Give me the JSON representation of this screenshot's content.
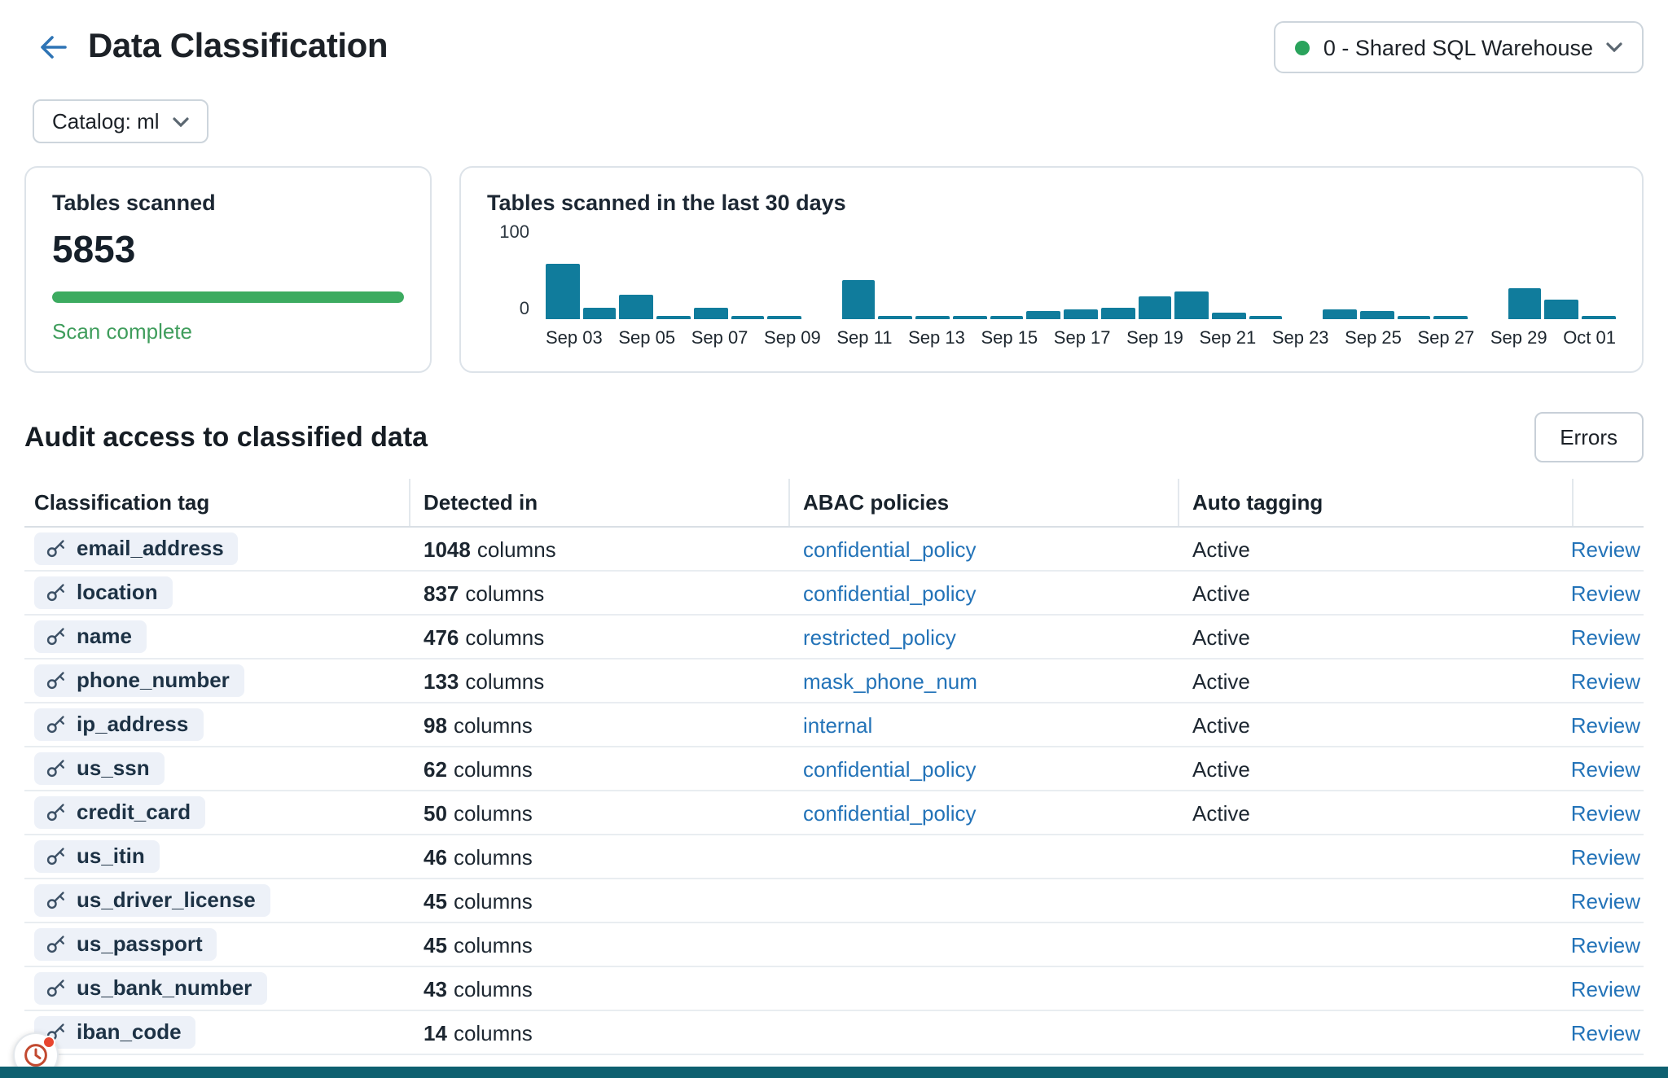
{
  "header": {
    "back_icon": "arrow-left",
    "title": "Data Classification",
    "warehouse_selector": {
      "label": "0 - Shared SQL Warehouse",
      "status_color": "#2aa35c"
    }
  },
  "filters": {
    "catalog_button": "Catalog: ml"
  },
  "cards": {
    "summary": {
      "title": "Tables scanned",
      "count": "5853",
      "status": "Scan complete",
      "progress_pct": 100,
      "progress_color": "#3cab60",
      "status_color": "#3f9d5c"
    },
    "chart": {
      "title": "Tables scanned in the last 30 days"
    }
  },
  "chart_data": {
    "type": "bar",
    "title": "Tables scanned in the last 30 days",
    "x": [
      "Sep 03",
      "Sep 04",
      "Sep 05",
      "Sep 06",
      "Sep 07",
      "Sep 08",
      "Sep 09",
      "Sep 10",
      "Sep 11",
      "Sep 12",
      "Sep 13",
      "Sep 14",
      "Sep 15",
      "Sep 16",
      "Sep 17",
      "Sep 18",
      "Sep 19",
      "Sep 20",
      "Sep 21",
      "Sep 22",
      "Sep 23",
      "Sep 24",
      "Sep 25",
      "Sep 26",
      "Sep 27",
      "Sep 28",
      "Sep 29",
      "Sep 30",
      "Oct 01"
    ],
    "values": [
      58,
      12,
      26,
      2,
      12,
      3,
      2,
      0,
      42,
      3,
      2,
      1,
      4,
      8,
      10,
      12,
      25,
      30,
      7,
      2,
      0,
      10,
      8,
      2,
      3,
      0,
      32,
      20,
      2
    ],
    "tick_every": 2,
    "ylim": [
      0,
      100
    ],
    "y_axis_labels": {
      "top": "100",
      "bottom": "0"
    },
    "bar_color": "#107c9c",
    "grid": false,
    "legend": false
  },
  "audit": {
    "title": "Audit access to classified data",
    "errors_button": "Errors",
    "table": {
      "columns": [
        "Classification tag",
        "Detected in",
        "ABAC policies",
        "Auto tagging"
      ],
      "review_label": "Review",
      "rows": [
        {
          "tag": "email_address",
          "count": "1048",
          "unit": "columns",
          "policy": "confidential_policy",
          "auto_tagging": "Active"
        },
        {
          "tag": "location",
          "count": "837",
          "unit": "columns",
          "policy": "confidential_policy",
          "auto_tagging": "Active"
        },
        {
          "tag": "name",
          "count": "476",
          "unit": "columns",
          "policy": "restricted_policy",
          "auto_tagging": "Active"
        },
        {
          "tag": "phone_number",
          "count": "133",
          "unit": "columns",
          "policy": "mask_phone_num",
          "auto_tagging": "Active"
        },
        {
          "tag": "ip_address",
          "count": "98",
          "unit": "columns",
          "policy": "internal",
          "auto_tagging": "Active"
        },
        {
          "tag": "us_ssn",
          "count": "62",
          "unit": "columns",
          "policy": "confidential_policy",
          "auto_tagging": "Active"
        },
        {
          "tag": "credit_card",
          "count": "50",
          "unit": "columns",
          "policy": "confidential_policy",
          "auto_tagging": "Active"
        },
        {
          "tag": "us_itin",
          "count": "46",
          "unit": "columns",
          "policy": "",
          "auto_tagging": ""
        },
        {
          "tag": "us_driver_license",
          "count": "45",
          "unit": "columns",
          "policy": "",
          "auto_tagging": ""
        },
        {
          "tag": "us_passport",
          "count": "45",
          "unit": "columns",
          "policy": "",
          "auto_tagging": ""
        },
        {
          "tag": "us_bank_number",
          "count": "43",
          "unit": "columns",
          "policy": "",
          "auto_tagging": ""
        },
        {
          "tag": "iban_code",
          "count": "14",
          "unit": "columns",
          "policy": "",
          "auto_tagging": ""
        }
      ]
    }
  },
  "floating_button": {
    "icon": "clock-icon",
    "badge_color": "#e8452e"
  },
  "footer_bar_color": "#0e6070"
}
